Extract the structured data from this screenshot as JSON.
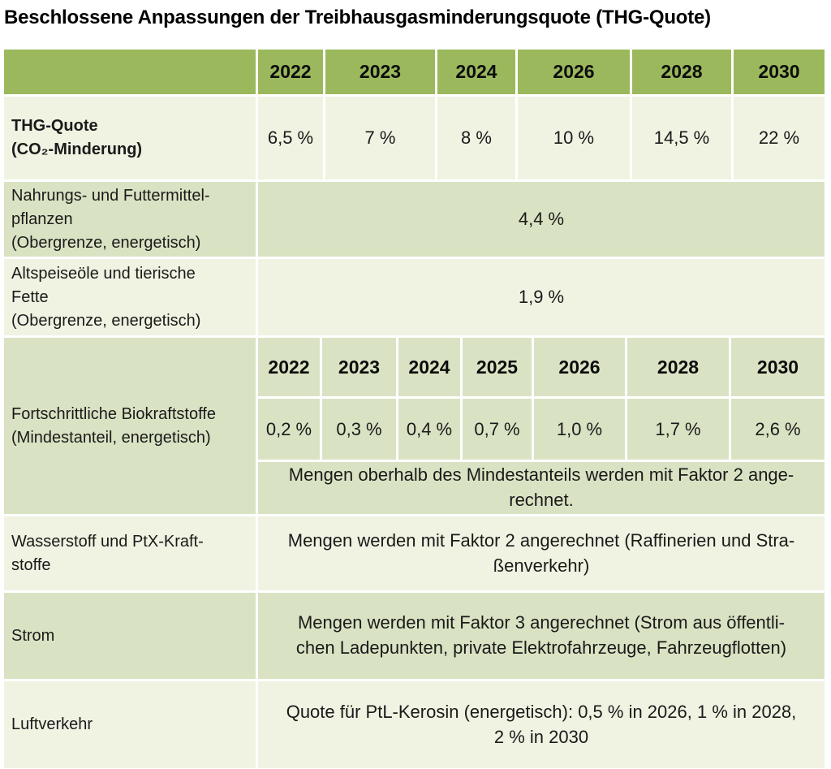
{
  "title": "Beschlossene Anpassungen der Treibhausgasminderungsquote (THG-Quote)",
  "colors": {
    "header_green": "#9bb95c",
    "row_light_green": "#d9e3c3",
    "row_cream": "#f0f3e2",
    "text": "#1a1a1a"
  },
  "main_table": {
    "years": [
      "2022",
      "2023",
      "2024",
      "2026",
      "2028",
      "2030"
    ],
    "thg_row": {
      "label": "THG-Quote\n(CO₂-Minderung)",
      "values": [
        "6,5 %",
        "7 %",
        "8 %",
        "10 %",
        "14,5 %",
        "22 %"
      ]
    },
    "food_crops_row": {
      "label": "Nahrungs- und Futtermittel-\npflanzen\n(Obergrenze, energetisch)",
      "value": "4,4 %"
    },
    "waste_oils_row": {
      "label": "Altspeiseöle und tierische\nFette\n(Obergrenze, energetisch)",
      "value": "1,9 %"
    }
  },
  "biofuel_section": {
    "label": "Fortschrittliche Biokraftstoffe\n(Mindestanteil, energetisch)",
    "years": [
      "2022",
      "2023",
      "2024",
      "2025",
      "2026",
      "2028",
      "2030"
    ],
    "values": [
      "0,2 %",
      "0,3 %",
      "0,4 %",
      "0,7 %",
      "1,0 %",
      "1,7 %",
      "2,6 %"
    ],
    "note": "Mengen oberhalb des Mindestanteils werden mit Faktor 2 ange-\nrechnet."
  },
  "bottom_rows": {
    "hydrogen": {
      "label": "Wasserstoff und PtX-Kraft-\nstoffe",
      "value": "Mengen werden mit Faktor 2 angerechnet (Raffinerien und Stra-\nßenverkehr)"
    },
    "electricity": {
      "label": "Strom",
      "value": "Mengen werden mit Faktor 3 angerechnet (Strom aus öffentli-\nchen Ladepunkten, private Elektrofahrzeuge, Fahrzeugflotten)"
    },
    "aviation": {
      "label": "Luftverkehr",
      "value": "Quote für PtL-Kerosin (energetisch): 0,5 % in 2026, 1 % in 2028,\n2 % in 2030"
    }
  },
  "chart_data": {
    "type": "table",
    "title": "Beschlossene Anpassungen der Treibhausgasminderungsquote (THG-Quote)",
    "rows": [
      {
        "measure": "THG-Quote (CO₂-Minderung)",
        "years": [
          2022,
          2023,
          2024,
          2026,
          2028,
          2030
        ],
        "values_percent": [
          6.5,
          7,
          8,
          10,
          14.5,
          22
        ]
      },
      {
        "measure": "Nahrungs- und Futtermittelpflanzen (Obergrenze, energetisch)",
        "value_percent": 4.4
      },
      {
        "measure": "Altspeiseöle und tierische Fette (Obergrenze, energetisch)",
        "value_percent": 1.9
      },
      {
        "measure": "Fortschrittliche Biokraftstoffe (Mindestanteil, energetisch)",
        "years": [
          2022,
          2023,
          2024,
          2025,
          2026,
          2028,
          2030
        ],
        "values_percent": [
          0.2,
          0.3,
          0.4,
          0.7,
          1.0,
          1.7,
          2.6
        ],
        "note": "Mengen oberhalb des Mindestanteils werden mit Faktor 2 angerechnet."
      },
      {
        "measure": "Wasserstoff und PtX-Kraftstoffe",
        "note": "Mengen werden mit Faktor 2 angerechnet (Raffinerien und Straßenverkehr)"
      },
      {
        "measure": "Strom",
        "note": "Mengen werden mit Faktor 3 angerechnet (Strom aus öffentlichen Ladepunkten, private Elektrofahrzeuge, Fahrzeugflotten)"
      },
      {
        "measure": "Luftverkehr",
        "note": "Quote für PtL-Kerosin (energetisch): 0,5 % in 2026, 1 % in 2028, 2 % in 2030"
      }
    ]
  }
}
